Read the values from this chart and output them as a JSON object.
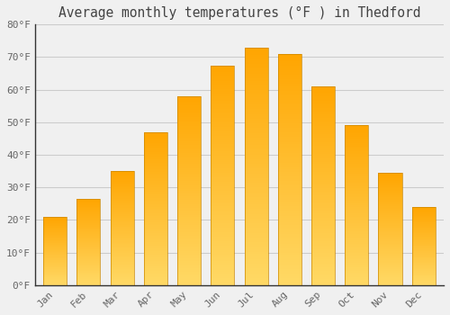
{
  "months": [
    "Jan",
    "Feb",
    "Mar",
    "Apr",
    "May",
    "Jun",
    "Jul",
    "Aug",
    "Sep",
    "Oct",
    "Nov",
    "Dec"
  ],
  "values": [
    21,
    26.5,
    35,
    47,
    58,
    67.5,
    73,
    71,
    61,
    49,
    34.5,
    24
  ],
  "bar_color_bottom": "#FFD966",
  "bar_color_top": "#FFA500",
  "bar_edge_color": "#CC8800",
  "title": "Average monthly temperatures (°F ) in Thedford",
  "ylim": [
    0,
    80
  ],
  "yticks": [
    0,
    10,
    20,
    30,
    40,
    50,
    60,
    70,
    80
  ],
  "ytick_labels": [
    "0°F",
    "10°F",
    "20°F",
    "30°F",
    "40°F",
    "50°F",
    "60°F",
    "70°F",
    "80°F"
  ],
  "grid_color": "#cccccc",
  "background_color": "#f0f0f0",
  "title_fontsize": 10.5,
  "tick_fontsize": 8,
  "font_family": "monospace",
  "tick_color": "#666666",
  "bar_width": 0.7,
  "gradient_steps": 100
}
